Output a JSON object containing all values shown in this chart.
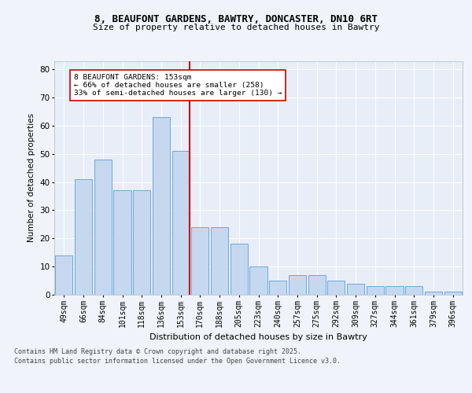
{
  "title1": "8, BEAUFONT GARDENS, BAWTRY, DONCASTER, DN10 6RT",
  "title2": "Size of property relative to detached houses in Bawtry",
  "xlabel": "Distribution of detached houses by size in Bawtry",
  "ylabel": "Number of detached properties",
  "categories": [
    "49sqm",
    "66sqm",
    "84sqm",
    "101sqm",
    "118sqm",
    "136sqm",
    "153sqm",
    "170sqm",
    "188sqm",
    "205sqm",
    "223sqm",
    "240sqm",
    "257sqm",
    "275sqm",
    "292sqm",
    "309sqm",
    "327sqm",
    "344sqm",
    "361sqm",
    "379sqm",
    "396sqm"
  ],
  "values": [
    14,
    41,
    48,
    37,
    37,
    63,
    51,
    24,
    24,
    18,
    10,
    5,
    7,
    7,
    5,
    4,
    3,
    3,
    3,
    1,
    1
  ],
  "bar_color": "#c5d8f0",
  "bar_edge_color": "#6fa8d6",
  "vline_x_index": 6,
  "vline_color": "#cc0000",
  "annotation_title": "8 BEAUFONT GARDENS: 153sqm",
  "annotation_line1": "← 66% of detached houses are smaller (258)",
  "annotation_line2": "33% of semi-detached houses are larger (130) →",
  "annotation_box_color": "#ffffff",
  "annotation_box_edge": "#cc0000",
  "ylim": [
    0,
    83
  ],
  "yticks": [
    0,
    10,
    20,
    30,
    40,
    50,
    60,
    70,
    80
  ],
  "bg_color": "#e8eef8",
  "grid_color": "#ffffff",
  "fig_bg_color": "#f0f4fa",
  "footer1": "Contains HM Land Registry data © Crown copyright and database right 2025.",
  "footer2": "Contains public sector information licensed under the Open Government Licence v3.0."
}
